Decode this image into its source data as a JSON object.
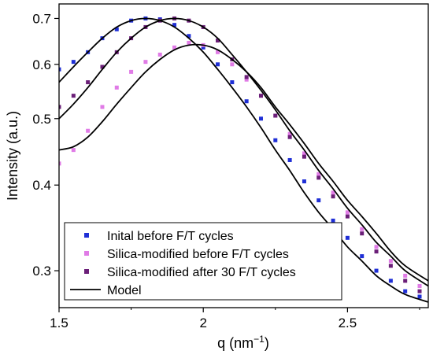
{
  "chart_data": {
    "type": "scatter",
    "xlabel": "q (nm",
    "xlabel_sup": "−1",
    "xlabel_close": ")",
    "ylabel": "Intensity (a.u.)",
    "xlim": [
      1.5,
      2.78
    ],
    "ylim": [
      0.265,
      0.735
    ],
    "y_scale": "log",
    "x_ticks": [
      1.5,
      2.0,
      2.5
    ],
    "x_tick_labels": [
      "1.5",
      "2",
      "2.5"
    ],
    "y_ticks": [
      0.3,
      0.4,
      0.5,
      0.6,
      0.7
    ],
    "y_tick_labels": [
      "0.3",
      "0.4",
      "0.5",
      "0.6",
      "0.7"
    ],
    "grid": false,
    "legend_position": "bottom-left",
    "series": [
      {
        "name": "Inital before F/T cycles",
        "kind": "points",
        "color": "#1f2fd6",
        "x": [
          1.5,
          1.55,
          1.6,
          1.65,
          1.7,
          1.75,
          1.8,
          1.85,
          1.9,
          1.95,
          2.0,
          2.05,
          2.1,
          2.15,
          2.2,
          2.25,
          2.3,
          2.35,
          2.4,
          2.45,
          2.5,
          2.55,
          2.6,
          2.65,
          2.7,
          2.75
        ],
        "y": [
          0.59,
          0.605,
          0.625,
          0.655,
          0.675,
          0.695,
          0.7,
          0.698,
          0.685,
          0.66,
          0.635,
          0.6,
          0.565,
          0.53,
          0.5,
          0.465,
          0.435,
          0.405,
          0.38,
          0.355,
          0.335,
          0.315,
          0.3,
          0.29,
          0.28,
          0.275
        ]
      },
      {
        "name": "Silica-modified before F/T cycles",
        "kind": "points",
        "color": "#e07be6",
        "x": [
          1.5,
          1.55,
          1.6,
          1.65,
          1.7,
          1.75,
          1.8,
          1.85,
          1.9,
          1.95,
          2.0,
          2.05,
          2.1,
          2.15,
          2.2,
          2.25,
          2.3,
          2.35,
          2.4,
          2.45,
          2.5,
          2.55,
          2.6,
          2.65,
          2.7,
          2.75
        ],
        "y": [
          0.43,
          0.45,
          0.48,
          0.52,
          0.555,
          0.585,
          0.605,
          0.62,
          0.635,
          0.645,
          0.64,
          0.625,
          0.6,
          0.57,
          0.54,
          0.505,
          0.475,
          0.445,
          0.415,
          0.39,
          0.365,
          0.345,
          0.325,
          0.31,
          0.295,
          0.285
        ]
      },
      {
        "name": "Silica-modified after 30 F/T cycles",
        "kind": "points",
        "color": "#6b1f78",
        "x": [
          1.5,
          1.55,
          1.6,
          1.65,
          1.7,
          1.75,
          1.8,
          1.85,
          1.9,
          1.95,
          2.0,
          2.05,
          2.1,
          2.15,
          2.2,
          2.25,
          2.3,
          2.35,
          2.4,
          2.45,
          2.5,
          2.55,
          2.6,
          2.65,
          2.7,
          2.75
        ],
        "y": [
          0.52,
          0.54,
          0.565,
          0.595,
          0.625,
          0.655,
          0.68,
          0.695,
          0.7,
          0.695,
          0.68,
          0.65,
          0.61,
          0.575,
          0.54,
          0.505,
          0.47,
          0.44,
          0.41,
          0.385,
          0.36,
          0.34,
          0.32,
          0.305,
          0.29,
          0.28
        ]
      },
      {
        "name": "Model",
        "kind": "lines",
        "color": "#000000",
        "curves": [
          {
            "x": [
              1.5,
              1.55,
              1.6,
              1.65,
              1.7,
              1.75,
              1.8,
              1.85,
              1.9,
              1.95,
              2.0,
              2.05,
              2.1,
              2.15,
              2.2,
              2.25,
              2.3,
              2.35,
              2.4,
              2.45,
              2.5,
              2.55,
              2.6,
              2.65,
              2.7,
              2.78
            ],
            "y": [
              0.565,
              0.595,
              0.625,
              0.655,
              0.68,
              0.695,
              0.7,
              0.695,
              0.68,
              0.655,
              0.625,
              0.59,
              0.555,
              0.52,
              0.485,
              0.45,
              0.42,
              0.39,
              0.365,
              0.345,
              0.325,
              0.31,
              0.295,
              0.285,
              0.277,
              0.27
            ]
          },
          {
            "x": [
              1.5,
              1.55,
              1.6,
              1.65,
              1.7,
              1.75,
              1.8,
              1.85,
              1.9,
              1.95,
              2.0,
              2.05,
              2.1,
              2.15,
              2.2,
              2.25,
              2.3,
              2.35,
              2.4,
              2.45,
              2.5,
              2.55,
              2.6,
              2.65,
              2.7,
              2.78
            ],
            "y": [
              0.5,
              0.525,
              0.555,
              0.59,
              0.625,
              0.655,
              0.68,
              0.695,
              0.7,
              0.695,
              0.68,
              0.655,
              0.62,
              0.585,
              0.55,
              0.515,
              0.48,
              0.45,
              0.42,
              0.395,
              0.37,
              0.35,
              0.33,
              0.315,
              0.3,
              0.285
            ]
          },
          {
            "x": [
              1.5,
              1.55,
              1.6,
              1.65,
              1.7,
              1.75,
              1.8,
              1.85,
              1.9,
              1.95,
              2.0,
              2.05,
              2.1,
              2.15,
              2.2,
              2.25,
              2.3,
              2.35,
              2.4,
              2.45,
              2.5,
              2.55,
              2.6,
              2.65,
              2.7,
              2.78
            ],
            "y": [
              0.45,
              0.455,
              0.47,
              0.495,
              0.525,
              0.555,
              0.585,
              0.61,
              0.63,
              0.64,
              0.64,
              0.63,
              0.61,
              0.585,
              0.555,
              0.52,
              0.49,
              0.46,
              0.43,
              0.405,
              0.38,
              0.36,
              0.34,
              0.32,
              0.305,
              0.29
            ]
          }
        ]
      }
    ]
  }
}
